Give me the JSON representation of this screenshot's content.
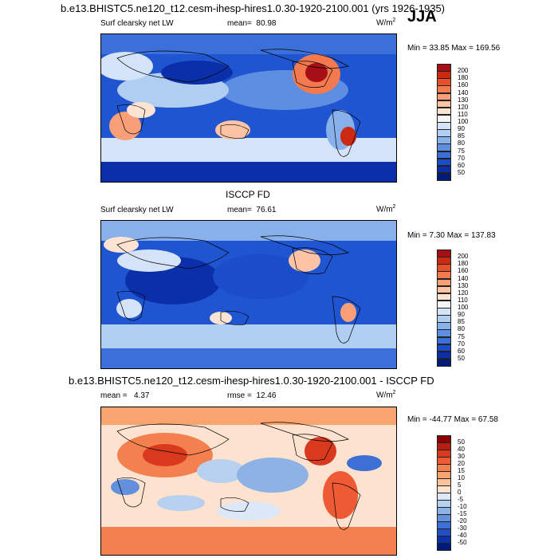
{
  "season": "JJA",
  "chart_data": [
    {
      "type": "heatmap",
      "title": "b.e13.BHISTC5.ne120_t12.cesm-ihesp-hires1.0.30-1920-2100.001 (yrs 1926-1935)",
      "variable": "Surf clearsky net LW",
      "stat1_label": "mean=",
      "stat1_value": "80.98",
      "units_base": "W/m",
      "units_exp": "2",
      "minmax_text": "Min =  33.85 Max = 169.56",
      "min": 33.85,
      "max": 169.56,
      "colorbar_levels": [
        "200",
        "180",
        "160",
        "140",
        "130",
        "120",
        "110",
        "100",
        "90",
        "85",
        "80",
        "75",
        "70",
        "60",
        "50"
      ],
      "colorbar_colors": [
        "#a50f15",
        "#cb2a10",
        "#e8502a",
        "#f37a4e",
        "#f99f78",
        "#fcc3a4",
        "#fde3d2",
        "#f5f5f5",
        "#d4e3f7",
        "#b0cdf2",
        "#88b0ea",
        "#5e8ee2",
        "#3b6fd9",
        "#1b4cc9",
        "#0a2fa8",
        "#001a78"
      ]
    },
    {
      "type": "heatmap",
      "title": "ISCCP FD",
      "variable": "Surf clearsky net LW",
      "stat1_label": "mean=",
      "stat1_value": "76.61",
      "units_base": "W/m",
      "units_exp": "2",
      "minmax_text": "Min =   7.30 Max = 137.83",
      "min": 7.3,
      "max": 137.83,
      "colorbar_levels": [
        "200",
        "180",
        "160",
        "140",
        "130",
        "120",
        "110",
        "100",
        "90",
        "85",
        "80",
        "75",
        "70",
        "60",
        "50"
      ],
      "colorbar_colors": [
        "#a50f15",
        "#cb2a10",
        "#e8502a",
        "#f37a4e",
        "#f99f78",
        "#fcc3a4",
        "#fde3d2",
        "#f5f5f5",
        "#d4e3f7",
        "#b0cdf2",
        "#88b0ea",
        "#5e8ee2",
        "#3b6fd9",
        "#1b4cc9",
        "#0a2fa8",
        "#001a78"
      ]
    },
    {
      "type": "heatmap",
      "title": "b.e13.BHISTC5.ne120_t12.cesm-ihesp-hires1.0.30-1920-2100.001 - ISCCP FD",
      "variable": "",
      "stat1_label": "mean =",
      "stat1_value": "4.37",
      "stat2_label": "rmse =",
      "stat2_value": "12.46",
      "units_base": "W/m",
      "units_exp": "2",
      "minmax_text": "Min = -44.77 Max =  67.58",
      "min": -44.77,
      "max": 67.58,
      "colorbar_levels": [
        "50",
        "40",
        "30",
        "20",
        "15",
        "10",
        "5",
        "0",
        "-5",
        "-10",
        "-15",
        "-20",
        "-30",
        "-40",
        "-50"
      ],
      "colorbar_colors": [
        "#8b0000",
        "#b81d13",
        "#d93a1e",
        "#ee5a34",
        "#f5804f",
        "#f9a36f",
        "#fcc39a",
        "#fde3cf",
        "#dce8f8",
        "#b7d0f0",
        "#8db2e6",
        "#6290dd",
        "#3d6fd4",
        "#2250c4",
        "#0f32a8",
        "#001a7a"
      ]
    }
  ]
}
